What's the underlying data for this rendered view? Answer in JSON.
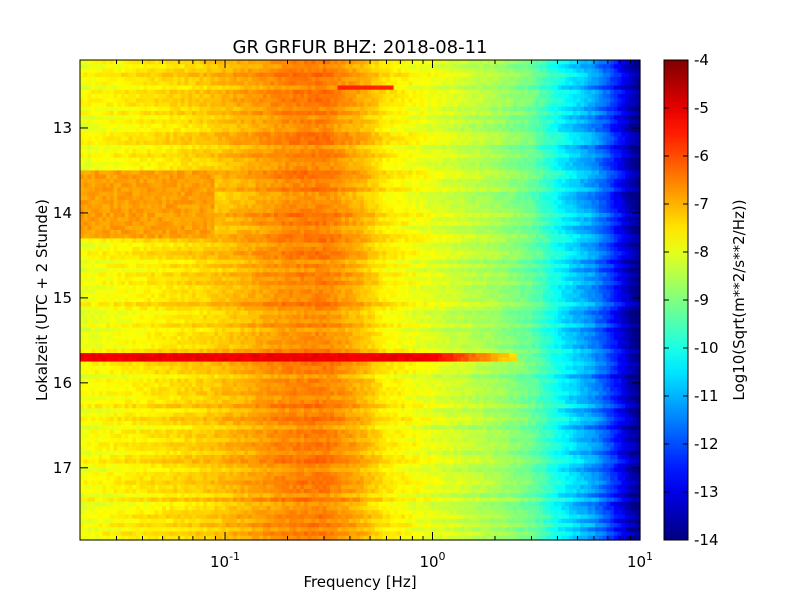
{
  "chart_data": {
    "type": "heatmap",
    "title": "GR GRFUR BHZ: 2018-08-11",
    "xlabel": "Frequency [Hz]",
    "ylabel": "Lokalzeit (UTC + 2 Stunde)",
    "colorbar_label": "Log10(Sqrt(m**2/s**2/Hz))",
    "x_scale": "log",
    "xlim": [
      0.02,
      10
    ],
    "ylim": [
      12.2,
      17.85
    ],
    "y_inverted": true,
    "x_ticks": [
      {
        "value": 0.1,
        "base": "10",
        "exp": "-1"
      },
      {
        "value": 1,
        "base": "10",
        "exp": "0"
      },
      {
        "value": 10,
        "base": "10",
        "exp": "1"
      }
    ],
    "y_ticks": [
      {
        "value": 13,
        "label": "13"
      },
      {
        "value": 14,
        "label": "14"
      },
      {
        "value": 15,
        "label": "15"
      },
      {
        "value": 16,
        "label": "16"
      },
      {
        "value": 17,
        "label": "17"
      }
    ],
    "color_range": [
      -14,
      -4
    ],
    "colormap": "jet",
    "colorbar_ticks": [
      "-4",
      "-5",
      "-6",
      "-7",
      "-8",
      "-9",
      "-10",
      "-11",
      "-12",
      "-13",
      "-14"
    ],
    "colorbar_tick_values": [
      -4,
      -5,
      -6,
      -7,
      -8,
      -9,
      -10,
      -11,
      -12,
      -13,
      -14
    ],
    "profile": {
      "frequency_hz": [
        0.02,
        0.04,
        0.08,
        0.12,
        0.2,
        0.3,
        0.45,
        0.6,
        1.0,
        2.0,
        3.0,
        4.5,
        6.0,
        7.0,
        8.0,
        9.0,
        10.0
      ],
      "level": [
        -7.9,
        -7.6,
        -7.3,
        -7.0,
        -6.6,
        -6.5,
        -7.0,
        -7.6,
        -8.0,
        -8.6,
        -9.2,
        -10.5,
        -11.3,
        -12.0,
        -12.8,
        -13.5,
        -14.0
      ]
    },
    "features": [
      {
        "name": "event-band",
        "time": 15.72,
        "duration": 0.07,
        "f_min": 0.02,
        "f_max": 2.6,
        "level": -5.1
      },
      {
        "name": "lowfreq-patch",
        "time_start": 13.5,
        "time_end": 14.3,
        "f_min": 0.02,
        "f_max": 0.09,
        "level": -6.8
      },
      {
        "name": "short-line",
        "time": 12.52,
        "duration": 0.04,
        "f_min": 0.35,
        "f_max": 0.65,
        "level": -5.6
      }
    ]
  }
}
